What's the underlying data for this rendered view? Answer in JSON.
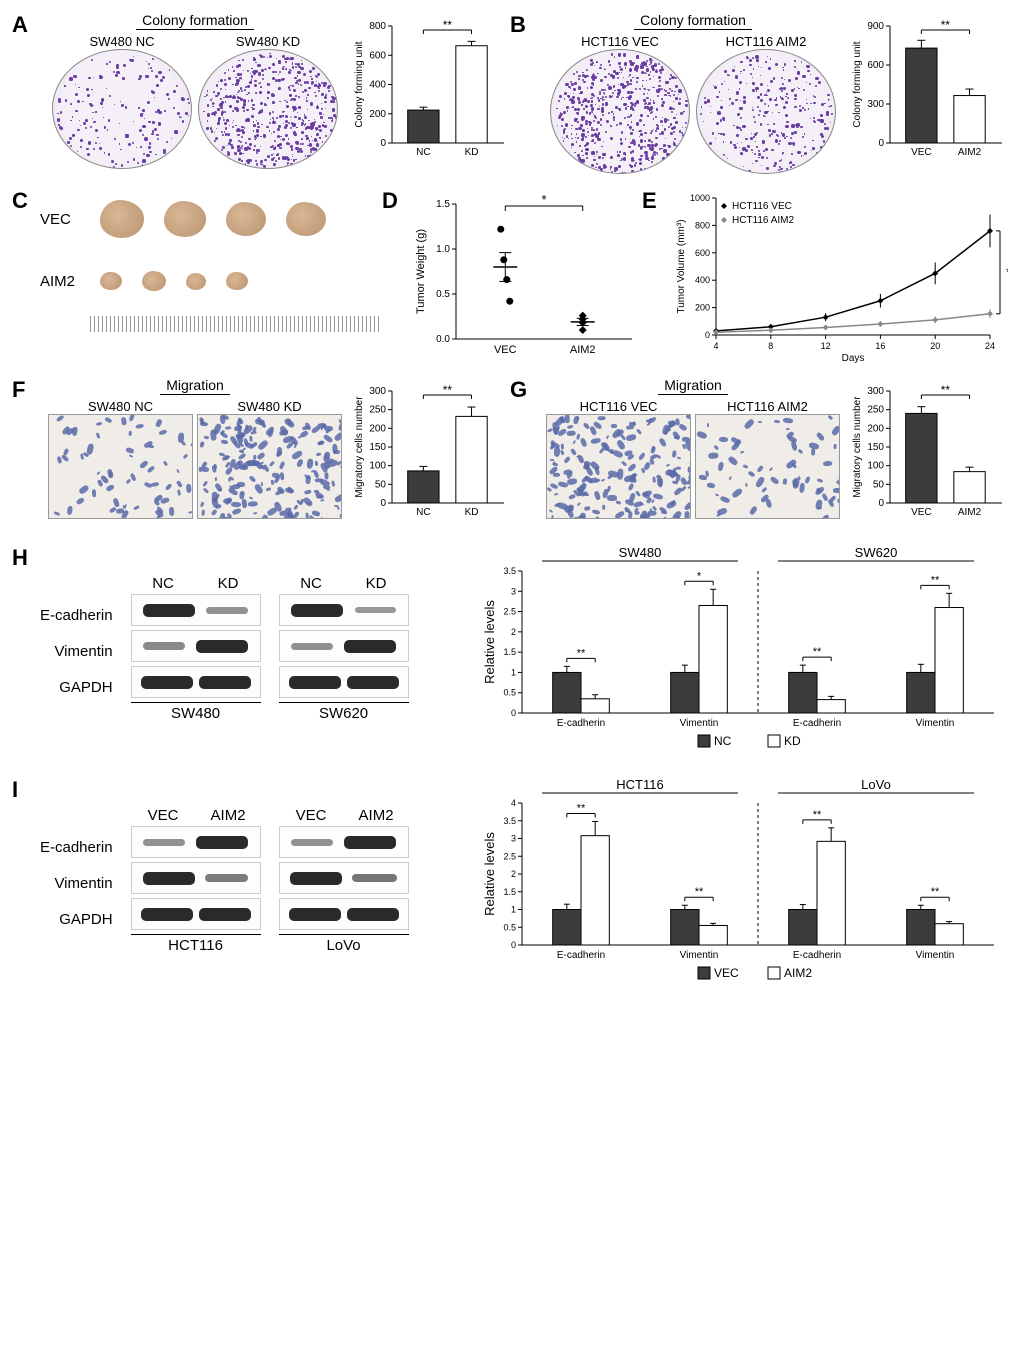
{
  "colors": {
    "bar_filled": "#3c3c3c",
    "bar_open": "#ffffff",
    "axis": "#000000",
    "dish_dot": "#6a3da0",
    "cell_dot": "#5a6aa8",
    "tumor": "#c49a74",
    "line_vec": "#000000",
    "line_aim2": "#888888"
  },
  "panelA": {
    "title": "Colony formation",
    "labels": [
      "SW480 NC",
      "SW480 KD"
    ],
    "ylabel": "Colony forming unit",
    "ymax": 800,
    "ytick": 200,
    "bars": [
      {
        "label": "NC",
        "value": 225,
        "err": 20,
        "fill": "#3c3c3c"
      },
      {
        "label": "KD",
        "value": 665,
        "err": 30,
        "fill": "#ffffff"
      }
    ],
    "sig": "**",
    "dot_density": [
      180,
      550
    ]
  },
  "panelB": {
    "title": "Colony formation",
    "labels": [
      "HCT116 VEC",
      "HCT116 AIM2"
    ],
    "ylabel": "Colony forming unit",
    "ymax": 900,
    "ytick": 300,
    "bars": [
      {
        "label": "VEC",
        "value": 730,
        "err": 60,
        "fill": "#3c3c3c"
      },
      {
        "label": "AIM2",
        "value": 365,
        "err": 50,
        "fill": "#ffffff"
      }
    ],
    "sig": "**",
    "dot_density": [
      600,
      300
    ]
  },
  "panelC": {
    "rows": [
      "VEC",
      "AIM2"
    ],
    "tumor_sizes": {
      "VEC": [
        44,
        42,
        40,
        40
      ],
      "AIM2": [
        22,
        24,
        20,
        22
      ]
    }
  },
  "panelD": {
    "ylabel": "Tumor Weight (g)",
    "ymax": 1.5,
    "ytick": 0.5,
    "groups": [
      "VEC",
      "AIM2"
    ],
    "points": {
      "VEC": [
        1.22,
        0.88,
        0.66,
        0.42
      ],
      "AIM2": [
        0.18,
        0.22,
        0.1,
        0.26
      ]
    },
    "mean": {
      "VEC": 0.8,
      "AIM2": 0.19
    },
    "sem": {
      "VEC": 0.16,
      "AIM2": 0.04
    },
    "sig": "*"
  },
  "panelE": {
    "ylabel": "Tumor Volume (mm³)",
    "ymax": 1000,
    "ytick": 200,
    "xlabel": "Days",
    "x": [
      4,
      8,
      12,
      16,
      20,
      24
    ],
    "series": [
      {
        "name": "HCT116 VEC",
        "color": "#000000",
        "marker": "diamond",
        "y": [
          30,
          60,
          130,
          250,
          450,
          760
        ],
        "err": [
          10,
          15,
          30,
          50,
          80,
          120
        ]
      },
      {
        "name": "HCT116 AIM2",
        "color": "#888888",
        "marker": "diamond",
        "y": [
          20,
          35,
          55,
          80,
          110,
          155
        ],
        "err": [
          8,
          10,
          12,
          18,
          25,
          35
        ]
      }
    ],
    "sig": "*"
  },
  "panelF": {
    "title": "Migration",
    "labels": [
      "SW480 NC",
      "SW480 KD"
    ],
    "ylabel": "Migratory cells number",
    "ymax": 300,
    "ytick": 50,
    "bars": [
      {
        "label": "NC",
        "value": 86,
        "err": 12,
        "fill": "#3c3c3c"
      },
      {
        "label": "KD",
        "value": 232,
        "err": 25,
        "fill": "#ffffff"
      }
    ],
    "sig": "**",
    "cell_density": [
      70,
      200
    ]
  },
  "panelG": {
    "title": "Migration",
    "labels": [
      "HCT116 VEC",
      "HCT116 AIM2"
    ],
    "ylabel": "Migratory cells number",
    "ymax": 300,
    "ytick": 50,
    "bars": [
      {
        "label": "VEC",
        "value": 240,
        "err": 18,
        "fill": "#3c3c3c"
      },
      {
        "label": "AIM2",
        "value": 84,
        "err": 12,
        "fill": "#ffffff"
      }
    ],
    "sig": "**",
    "cell_density": [
      210,
      75
    ]
  },
  "panelH": {
    "row_labels": [
      "E-cadherin",
      "Vimentin",
      "GAPDH"
    ],
    "col_labels": [
      "NC",
      "KD"
    ],
    "cell_lines": [
      "SW480",
      "SW620"
    ],
    "bands": {
      "SW480": {
        "E-cadherin": [
          1.0,
          0.25
        ],
        "Vimentin": [
          0.3,
          1.0
        ],
        "GAPDH": [
          1.0,
          1.0
        ]
      },
      "SW620": {
        "E-cadherin": [
          1.0,
          0.2
        ],
        "Vimentin": [
          0.25,
          1.0
        ],
        "GAPDH": [
          1.0,
          1.0
        ]
      }
    },
    "chart": {
      "ylabel": "Relative levels",
      "ymax": 3.5,
      "ytick": 0.5,
      "groups": [
        "SW480",
        "SW620"
      ],
      "proteins": [
        "E-cadherin",
        "Vimentin"
      ],
      "legend": [
        "NC",
        "KD"
      ],
      "legend_fill": [
        "#3c3c3c",
        "#ffffff"
      ],
      "data": {
        "SW480": {
          "E-cadherin": {
            "NC": 1.0,
            "KD": 0.35,
            "errNC": 0.15,
            "errKD": 0.1,
            "sig": "**"
          },
          "Vimentin": {
            "NC": 1.0,
            "KD": 2.65,
            "errNC": 0.18,
            "errKD": 0.4,
            "sig": "*"
          }
        },
        "SW620": {
          "E-cadherin": {
            "NC": 1.0,
            "KD": 0.33,
            "errNC": 0.18,
            "errKD": 0.08,
            "sig": "**"
          },
          "Vimentin": {
            "NC": 1.0,
            "KD": 2.6,
            "errNC": 0.2,
            "errKD": 0.35,
            "sig": "**"
          }
        }
      }
    }
  },
  "panelI": {
    "row_labels": [
      "E-cadherin",
      "Vimentin",
      "GAPDH"
    ],
    "col_labels": [
      "VEC",
      "AIM2"
    ],
    "cell_lines": [
      "HCT116",
      "LoVo"
    ],
    "bands": {
      "HCT116": {
        "E-cadherin": [
          0.25,
          1.0
        ],
        "Vimentin": [
          1.0,
          0.4
        ],
        "GAPDH": [
          1.0,
          1.0
        ]
      },
      "LoVo": {
        "E-cadherin": [
          0.25,
          1.0
        ],
        "Vimentin": [
          1.0,
          0.45
        ],
        "GAPDH": [
          1.0,
          1.0
        ]
      }
    },
    "chart": {
      "ylabel": "Relative levels",
      "ymax": 4.0,
      "ytick": 0.5,
      "groups": [
        "HCT116",
        "LoVo"
      ],
      "proteins": [
        "E-cadherin",
        "Vimentin"
      ],
      "legend": [
        "VEC",
        "AIM2"
      ],
      "legend_fill": [
        "#3c3c3c",
        "#ffffff"
      ],
      "data": {
        "HCT116": {
          "E-cadherin": {
            "NC": 1.0,
            "KD": 3.08,
            "errNC": 0.15,
            "errKD": 0.4,
            "sig": "**"
          },
          "Vimentin": {
            "NC": 1.0,
            "KD": 0.55,
            "errNC": 0.12,
            "errKD": 0.06,
            "sig": "**"
          }
        },
        "LoVo": {
          "E-cadherin": {
            "NC": 1.0,
            "KD": 2.92,
            "errNC": 0.14,
            "errKD": 0.38,
            "sig": "**"
          },
          "Vimentin": {
            "NC": 1.0,
            "KD": 0.6,
            "errNC": 0.12,
            "errKD": 0.06,
            "sig": "**"
          }
        }
      }
    }
  }
}
